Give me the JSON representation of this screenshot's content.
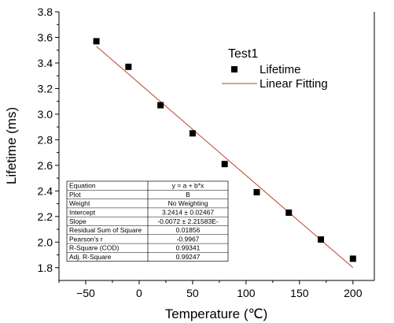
{
  "chart_data": {
    "type": "scatter",
    "title": "",
    "xlabel": "Temperature (℃)",
    "ylabel": "Lifetime (ms)",
    "xlim": [
      -75,
      220
    ],
    "ylim": [
      1.7,
      3.8
    ],
    "x_ticks": [
      -50,
      0,
      50,
      100,
      150,
      200
    ],
    "x_tick_labels": [
      "−50",
      "0",
      "50",
      "100",
      "150",
      "200"
    ],
    "y_ticks": [
      1.8,
      2.0,
      2.2,
      2.4,
      2.6,
      2.8,
      3.0,
      3.2,
      3.4,
      3.6,
      3.8
    ],
    "y_tick_labels": [
      "1.8",
      "2.0",
      "2.2",
      "2.4",
      "2.6",
      "2.8",
      "3.0",
      "3.2",
      "3.4",
      "3.6",
      "3.8"
    ],
    "grid": false,
    "legend_position": "top-right",
    "legend_title": "Test1",
    "series": [
      {
        "name": "Lifetime",
        "kind": "scatter",
        "marker": "square",
        "color": "#000000",
        "x": [
          -40,
          -10,
          20,
          50,
          80,
          110,
          140,
          170,
          200
        ],
        "y": [
          3.57,
          3.37,
          3.07,
          2.85,
          2.61,
          2.39,
          2.23,
          2.02,
          1.87
        ]
      },
      {
        "name": "Linear Fitting",
        "kind": "line",
        "color": "#c0392b",
        "x": [
          -40,
          200
        ],
        "y": [
          3.53,
          1.8
        ]
      }
    ],
    "fit_table": [
      [
        "Equation",
        "y = a + b*x"
      ],
      [
        "Plot",
        "B"
      ],
      [
        "Weight",
        "No Weighting"
      ],
      [
        "Intercept",
        "3.2414 ± 0.02467"
      ],
      [
        "Slope",
        "-0.0072 ± 2.21583E-"
      ],
      [
        "Residual Sum of Square",
        "0.01856"
      ],
      [
        "Pearson's r",
        "-0.9967"
      ],
      [
        "R-Square (COD)",
        "0.99341"
      ],
      [
        "Adj. R-Square",
        "0.99247"
      ]
    ]
  }
}
